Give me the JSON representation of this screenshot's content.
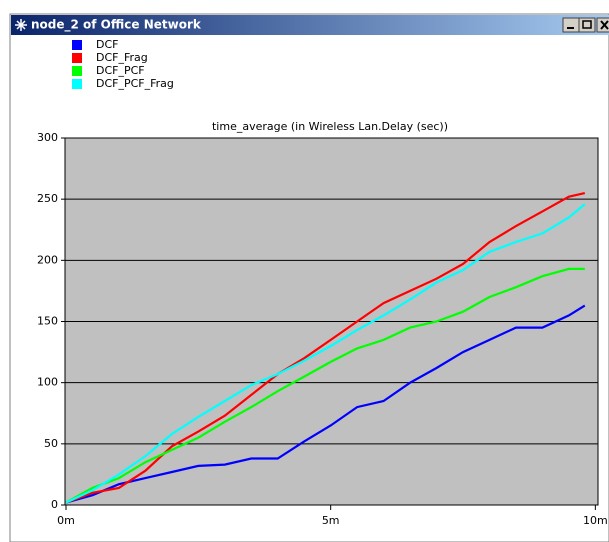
{
  "window": {
    "title": "node_2 of Office Network"
  },
  "chart_data": {
    "type": "line",
    "title": "time_average (in Wireless Lan.Delay (sec))",
    "x": [
      0,
      0.5,
      1,
      1.5,
      2,
      2.5,
      3,
      3.5,
      4,
      4.5,
      5,
      5.5,
      6,
      6.5,
      7,
      7.5,
      8,
      8.5,
      9,
      9.5,
      9.8
    ],
    "series": [
      {
        "name": "DCF",
        "color": "#0000ff",
        "values": [
          2,
          8,
          17,
          22,
          27,
          32,
          33,
          38,
          38,
          52,
          65,
          80,
          85,
          100,
          112,
          125,
          135,
          145,
          145,
          155,
          163
        ]
      },
      {
        "name": "DCF_Frag",
        "color": "#ff0000",
        "values": [
          2,
          10,
          14,
          28,
          48,
          60,
          73,
          90,
          107,
          120,
          135,
          150,
          165,
          175,
          185,
          197,
          215,
          228,
          240,
          252,
          255
        ]
      },
      {
        "name": "DCF_PCF",
        "color": "#00ff00",
        "values": [
          2,
          14,
          22,
          35,
          45,
          55,
          68,
          80,
          93,
          105,
          117,
          128,
          135,
          145,
          150,
          158,
          170,
          178,
          187,
          193,
          193
        ]
      },
      {
        "name": "DCF_PCF_Frag",
        "color": "#00ffff",
        "values": [
          2,
          12,
          25,
          40,
          58,
          72,
          85,
          98,
          107,
          118,
          130,
          143,
          155,
          168,
          182,
          192,
          207,
          215,
          222,
          235,
          246
        ]
      }
    ],
    "xlim": [
      0,
      10.05
    ],
    "xticks": [
      {
        "value": 0,
        "label": "0m"
      },
      {
        "value": 5,
        "label": "5m"
      },
      {
        "value": 10,
        "label": "10m"
      }
    ],
    "ylim": [
      0,
      300
    ],
    "yticks": [
      0,
      50,
      100,
      150,
      200,
      250,
      300
    ],
    "grid": true,
    "legend": "top-left"
  }
}
